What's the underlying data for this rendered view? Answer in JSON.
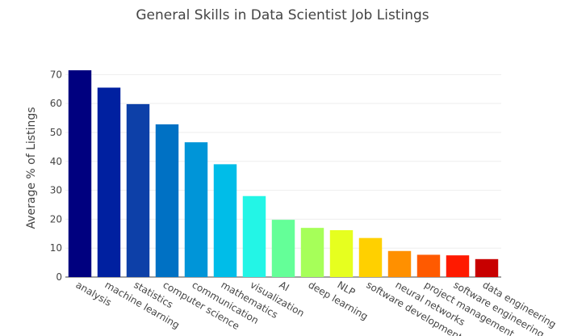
{
  "chart_data": {
    "type": "bar",
    "title": "General Skills in Data Scientist Job Listings",
    "xlabel": "",
    "ylabel": "Average % of Listings",
    "ylim": [
      0,
      71.5
    ],
    "yticks": [
      0,
      10,
      20,
      30,
      40,
      50,
      60,
      70
    ],
    "grid": true,
    "categories": [
      "analysis",
      "machine learning",
      "statistics",
      "computer science",
      "communication",
      "mathematics",
      "visualization",
      "AI",
      "deep learning",
      "NLP",
      "software development",
      "neural networks",
      "project management",
      "software engineering",
      "data engineering"
    ],
    "values": [
      71.5,
      65.5,
      59.8,
      52.8,
      46.6,
      39.0,
      28.0,
      19.8,
      17.0,
      16.2,
      13.5,
      9.0,
      7.7,
      7.5,
      6.2
    ],
    "colors": [
      "#00007f",
      "#0020a0",
      "#0d40a8",
      "#0071c4",
      "#0095d8",
      "#00bde8",
      "#23f5e6",
      "#64ff98",
      "#a6ff59",
      "#e6ff1f",
      "#ffd000",
      "#ff9000",
      "#ff5a00",
      "#ff1a00",
      "#c80000"
    ]
  }
}
